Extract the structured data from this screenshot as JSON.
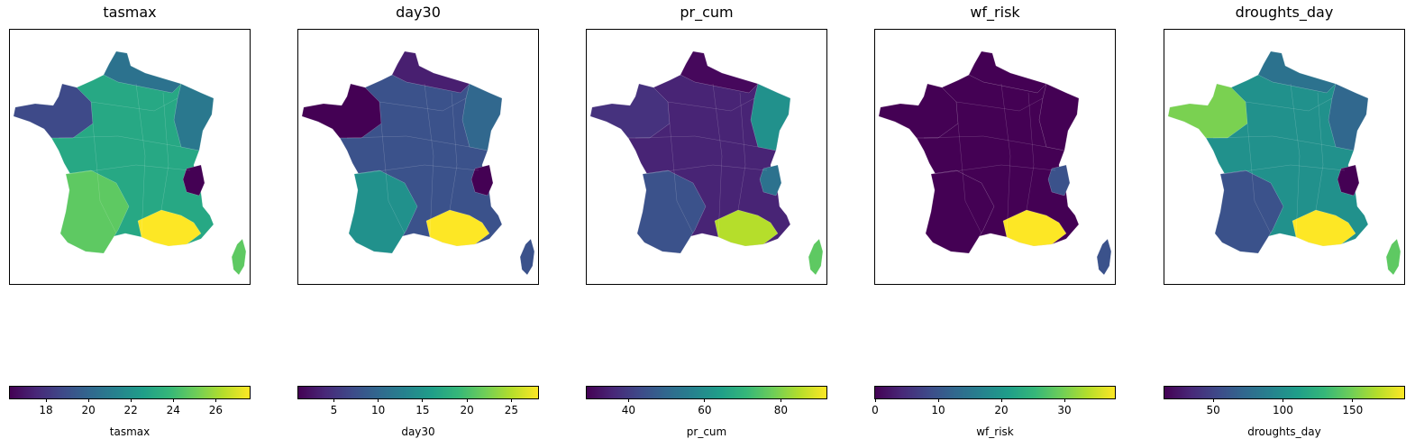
{
  "panels": [
    {
      "title": "tasmax",
      "colorbar": {
        "label": "tasmax",
        "min": 16.3,
        "max": 27.6,
        "ticks": [
          18,
          20,
          22,
          24,
          26
        ]
      },
      "colors": {
        "base": "#27a884",
        "north": "#2c728e",
        "west": "#3e4a89",
        "southwest": "#5ec962",
        "south": "#fde725",
        "alps": "#440154",
        "corsica": "#5ec962",
        "east": "#2a788e"
      }
    },
    {
      "title": "day30",
      "colorbar": {
        "label": "day30",
        "min": 1,
        "max": 28,
        "ticks": [
          5,
          10,
          15,
          20,
          25
        ]
      },
      "colors": {
        "base": "#3b528b",
        "north": "#481f70",
        "west": "#440154",
        "southwest": "#21918c",
        "south": "#fde725",
        "alps": "#440154",
        "corsica": "#3b528b",
        "east": "#31688e"
      }
    },
    {
      "title": "pr_cum",
      "colorbar": {
        "label": "pr_cum",
        "min": 29,
        "max": 92,
        "ticks": [
          40,
          60,
          80
        ]
      },
      "colors": {
        "base": "#482475",
        "north": "#46085c",
        "west": "#46327e",
        "southwest": "#3b528b",
        "south": "#b5de2b",
        "alps": "#2c728e",
        "corsica": "#5ec962",
        "east": "#21918c"
      }
    },
    {
      "title": "wf_risk",
      "colorbar": {
        "label": "wf_risk",
        "min": 0,
        "max": 38,
        "ticks": [
          0,
          10,
          20,
          30
        ]
      },
      "colors": {
        "base": "#440154",
        "north": "#440154",
        "west": "#440154",
        "southwest": "#440154",
        "south": "#fde725",
        "alps": "#3b528b",
        "corsica": "#3b528b",
        "east": "#440154"
      }
    },
    {
      "title": "droughts_day",
      "colorbar": {
        "label": "droughts_day",
        "min": 15,
        "max": 187,
        "ticks": [
          50,
          100,
          150
        ]
      },
      "colors": {
        "base": "#21918c",
        "north": "#2c728e",
        "west": "#7ad151",
        "southwest": "#3b528b",
        "south": "#fde725",
        "alps": "#440154",
        "corsica": "#5ec962",
        "east": "#31688e"
      }
    }
  ],
  "colormap": "viridis"
}
